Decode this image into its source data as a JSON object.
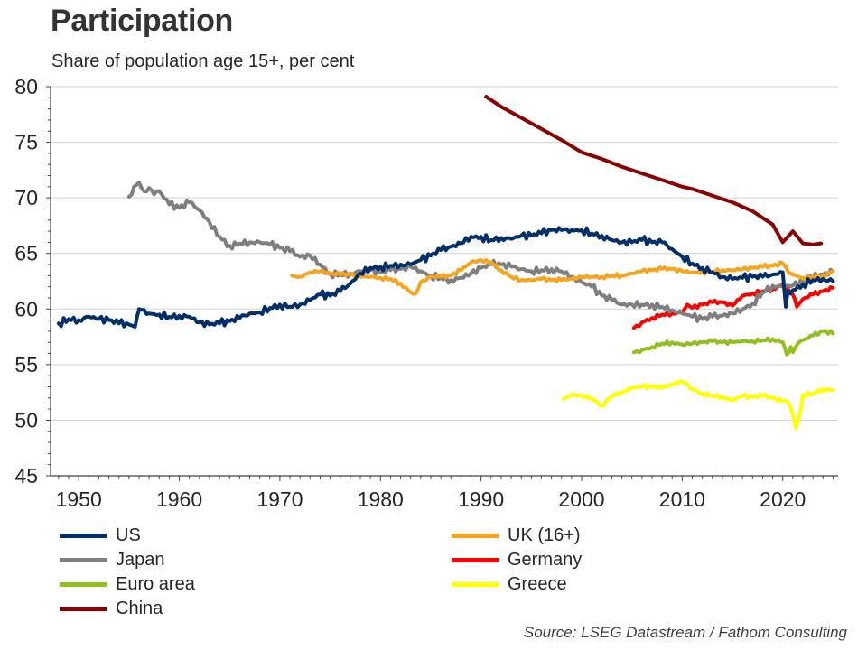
{
  "header": {
    "title": "Participation",
    "subtitle": "Share of population age 15+, per cent"
  },
  "source": "Source: LSEG Datastream / Fathom Consulting",
  "chart_data": {
    "type": "line",
    "title": "Participation",
    "subtitle": "Share of population age 15+, per cent",
    "xlabel": "",
    "ylabel": "",
    "xlim": [
      1947.2,
      2025.5
    ],
    "ylim": [
      45,
      80
    ],
    "grid": true,
    "x_ticks": [
      1950,
      1960,
      1970,
      1980,
      1990,
      2000,
      2010,
      2020
    ],
    "x_tick_labels": [
      "1950",
      "1960",
      "1970",
      "1980",
      "1990",
      "2000",
      "2010",
      "2020"
    ],
    "y_ticks": [
      45,
      50,
      55,
      60,
      65,
      70,
      75,
      80
    ],
    "y_tick_labels": [
      "45",
      "50",
      "55",
      "60",
      "65",
      "70",
      "75",
      "80"
    ],
    "legend_position": "bottom",
    "series": [
      {
        "name": "US",
        "color": "#002f6c",
        "x": [
          1948,
          1949,
          1950,
          1951,
          1952,
          1953,
          1954,
          1955,
          1955.6,
          1956,
          1957,
          1958,
          1959,
          1960,
          1961,
          1962,
          1963,
          1964,
          1965,
          1966,
          1967,
          1968,
          1969,
          1970,
          1971,
          1972,
          1973,
          1974,
          1975,
          1976,
          1977,
          1978,
          1979,
          1980,
          1981,
          1982,
          1983,
          1984,
          1985,
          1986,
          1987,
          1988,
          1989,
          1990,
          1991,
          1992,
          1993,
          1994,
          1995,
          1996,
          1997,
          1998,
          1999,
          2000,
          2001,
          2002,
          2003,
          2004,
          2005,
          2006,
          2007,
          2008,
          2009,
          2010,
          2011,
          2012,
          2013,
          2014,
          2015,
          2016,
          2017,
          2018,
          2019,
          2020,
          2020.3,
          2020.5,
          2021,
          2022,
          2023,
          2024,
          2025
        ],
        "values": [
          58.7,
          59.1,
          59.0,
          59.3,
          59.1,
          59.0,
          58.7,
          58.6,
          58.4,
          60.0,
          59.6,
          59.5,
          59.3,
          59.4,
          59.3,
          58.8,
          58.6,
          58.7,
          58.9,
          59.2,
          59.6,
          59.7,
          60.1,
          60.4,
          60.2,
          60.4,
          60.8,
          61.3,
          61.2,
          61.6,
          62.3,
          63.2,
          63.7,
          63.8,
          63.9,
          64.0,
          64.0,
          64.4,
          64.8,
          65.3,
          65.6,
          65.9,
          66.5,
          66.5,
          66.2,
          66.4,
          66.3,
          66.6,
          66.6,
          66.8,
          67.1,
          67.1,
          67.1,
          67.1,
          66.8,
          66.6,
          66.2,
          66.0,
          66.0,
          66.2,
          66.0,
          66.0,
          65.4,
          64.7,
          64.1,
          63.7,
          63.3,
          62.9,
          62.7,
          62.8,
          62.9,
          62.9,
          63.1,
          63.3,
          60.2,
          61.6,
          61.7,
          62.2,
          62.6,
          62.7,
          62.5
        ]
      },
      {
        "name": "Japan",
        "color": "#7f7f7f",
        "x": [
          1955,
          1955.5,
          1956,
          1956.5,
          1957,
          1957.5,
          1958,
          1959,
          1960,
          1961,
          1962,
          1963,
          1964,
          1965,
          1966,
          1967,
          1968,
          1969,
          1970,
          1971,
          1972,
          1973,
          1974,
          1975,
          1976,
          1977,
          1978,
          1979,
          1980,
          1981,
          1982,
          1983,
          1984,
          1985,
          1986,
          1987,
          1988,
          1989,
          1990,
          1991,
          1992,
          1993,
          1994,
          1995,
          1996,
          1997,
          1998,
          1999,
          2000,
          2001,
          2002,
          2003,
          2004,
          2005,
          2006,
          2007,
          2008,
          2009,
          2010,
          2011,
          2012,
          2013,
          2014,
          2015,
          2016,
          2017,
          2018,
          2019,
          2020,
          2021,
          2022,
          2023,
          2024,
          2025
        ],
        "values": [
          70.1,
          71.0,
          71.4,
          70.6,
          70.9,
          70.3,
          70.6,
          69.4,
          69.1,
          69.6,
          68.9,
          67.8,
          66.5,
          65.7,
          65.9,
          66.0,
          66.0,
          65.8,
          65.5,
          65.2,
          64.7,
          64.8,
          64.0,
          63.2,
          63.1,
          63.2,
          63.4,
          63.5,
          63.3,
          63.5,
          63.6,
          63.8,
          63.4,
          63.0,
          62.8,
          62.6,
          62.8,
          63.2,
          63.7,
          64.0,
          64.0,
          63.8,
          63.6,
          63.4,
          63.5,
          63.6,
          63.4,
          62.9,
          62.4,
          62.0,
          61.2,
          60.8,
          60.4,
          60.4,
          60.4,
          60.4,
          60.2,
          59.9,
          59.6,
          59.3,
          59.1,
          59.3,
          59.4,
          59.6,
          60.0,
          60.5,
          61.5,
          62.1,
          62.0,
          62.1,
          62.4,
          62.8,
          63.1,
          63.4
        ]
      },
      {
        "name": "Euro area",
        "color": "#92c01f",
        "x": [
          2005.2,
          2006,
          2007,
          2008,
          2009,
          2010,
          2011,
          2012,
          2013,
          2014,
          2015,
          2016,
          2017,
          2018,
          2019,
          2020,
          2020.4,
          2020.8,
          2021,
          2021.5,
          2022,
          2023,
          2024,
          2025
        ],
        "values": [
          56.1,
          56.3,
          56.6,
          56.9,
          57.0,
          56.8,
          56.9,
          57.0,
          57.1,
          57.0,
          57.0,
          57.1,
          57.1,
          57.2,
          57.3,
          57.0,
          55.9,
          56.6,
          56.1,
          56.9,
          57.2,
          57.6,
          58.0,
          57.8
        ]
      },
      {
        "name": "China",
        "color": "#8b0000",
        "x": [
          1990.5,
          1992,
          1994,
          1996,
          1998,
          2000,
          2002,
          2004,
          2006,
          2008,
          2010,
          2011,
          2012,
          2014,
          2015,
          2017,
          2019,
          2020,
          2021,
          2022,
          2023,
          2023.8
        ],
        "values": [
          79.1,
          78.2,
          77.2,
          76.2,
          75.2,
          74.1,
          73.5,
          72.8,
          72.2,
          71.6,
          71.0,
          70.8,
          70.5,
          69.9,
          69.6,
          68.8,
          67.6,
          66.0,
          67.0,
          65.9,
          65.8,
          65.9
        ]
      },
      {
        "name": "UK (16+)",
        "color": "#f7a31b",
        "x": [
          1971.2,
          1972,
          1973,
          1974,
          1975,
          1976,
          1977,
          1978,
          1979,
          1980,
          1981,
          1982,
          1983,
          1983.5,
          1984,
          1985,
          1986,
          1987,
          1988,
          1989,
          1990,
          1991,
          1992,
          1993,
          1994,
          1995,
          1996,
          1997,
          1998,
          1999,
          2000,
          2001,
          2002,
          2003,
          2004,
          2005,
          2006,
          2007,
          2008,
          2009,
          2010,
          2011,
          2012,
          2013,
          2014,
          2015,
          2016,
          2017,
          2018,
          2019,
          2020,
          2020.6,
          2021,
          2022,
          2023,
          2024,
          2025
        ],
        "values": [
          63.0,
          62.9,
          63.3,
          63.4,
          63.2,
          63.1,
          63.1,
          62.9,
          62.9,
          62.8,
          62.7,
          62.3,
          61.5,
          61.4,
          62.4,
          62.9,
          62.9,
          63.0,
          63.5,
          64.2,
          64.4,
          64.2,
          63.5,
          62.9,
          62.6,
          62.6,
          62.7,
          62.6,
          62.6,
          62.7,
          62.9,
          62.9,
          62.9,
          63.0,
          63.0,
          63.2,
          63.4,
          63.5,
          63.6,
          63.6,
          63.4,
          63.3,
          63.3,
          63.4,
          63.5,
          63.5,
          63.6,
          63.7,
          63.8,
          63.9,
          64.1,
          63.2,
          63.1,
          62.8,
          62.9,
          63.0,
          63.4
        ]
      },
      {
        "name": "Germany",
        "color": "#ff0000",
        "x": [
          2005.2,
          2006,
          2007,
          2008,
          2009,
          2010,
          2010.5,
          2011,
          2012,
          2013,
          2014,
          2015,
          2016,
          2017,
          2018,
          2019,
          2020,
          2020.5,
          2021,
          2021.4,
          2022,
          2023,
          2024,
          2025
        ],
        "values": [
          58.3,
          58.8,
          59.2,
          59.5,
          59.6,
          59.7,
          60.4,
          60.1,
          60.4,
          60.6,
          60.6,
          60.3,
          61.2,
          61.4,
          61.6,
          61.8,
          62.2,
          61.8,
          61.3,
          60.2,
          60.9,
          61.3,
          61.6,
          61.9
        ]
      },
      {
        "name": "Greece",
        "color": "#ffff00",
        "x": [
          1998.2,
          1999,
          2000,
          2001,
          2002,
          2003,
          2004,
          2005,
          2006,
          2007,
          2008,
          2009,
          2010,
          2011,
          2012,
          2013,
          2014,
          2015,
          2016,
          2017,
          2018,
          2019,
          2020,
          2020.6,
          2021,
          2021.3,
          2021.8,
          2022,
          2023,
          2024,
          2025
        ],
        "values": [
          51.9,
          52.3,
          52.2,
          52.0,
          51.3,
          52.2,
          52.5,
          52.9,
          53.0,
          53.0,
          52.9,
          53.2,
          53.5,
          52.8,
          52.4,
          52.2,
          52.1,
          51.8,
          52.2,
          52.1,
          52.2,
          52.0,
          51.7,
          51.5,
          50.5,
          49.3,
          51.0,
          52.3,
          52.4,
          52.8,
          52.7
        ]
      }
    ]
  },
  "legend": {
    "items": [
      {
        "label": "US",
        "color": "#002f6c"
      },
      {
        "label": "Japan",
        "color": "#7f7f7f"
      },
      {
        "label": "Euro area",
        "color": "#92c01f"
      },
      {
        "label": "China",
        "color": "#8b0000"
      },
      {
        "label": "UK (16+)",
        "color": "#f7a31b"
      },
      {
        "label": "Germany",
        "color": "#ff0000"
      },
      {
        "label": "Greece",
        "color": "#ffff00"
      }
    ]
  }
}
